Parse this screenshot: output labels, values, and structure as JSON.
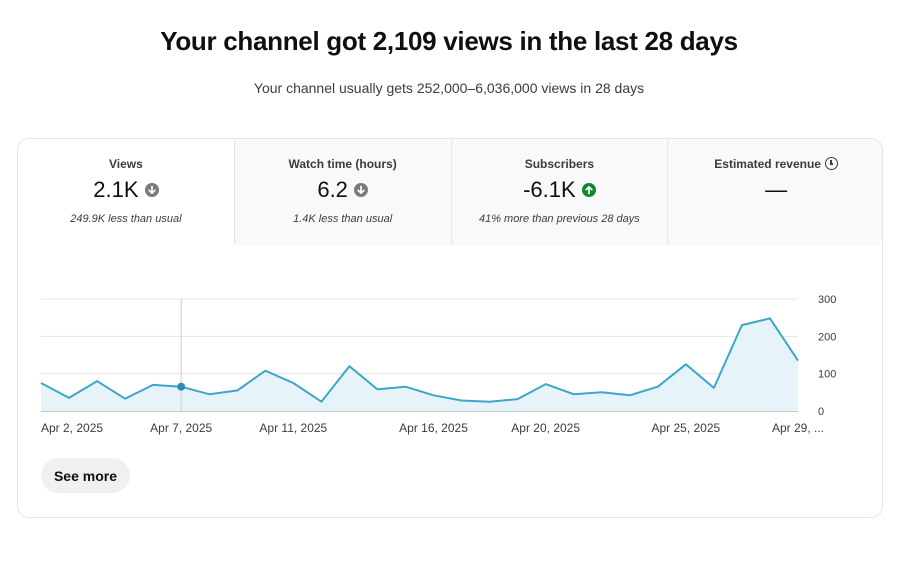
{
  "headline": "Your channel got 2,109 views in the last 28 days",
  "subline": "Your channel usually gets 252,000–6,036,000 views in 28 days",
  "tabs": [
    {
      "label": "Views",
      "value": "2.1K",
      "note": "249.9K less than usual",
      "trend": "down"
    },
    {
      "label": "Watch time (hours)",
      "value": "6.2",
      "note": "1.4K less than usual",
      "trend": "down"
    },
    {
      "label": "Subscribers",
      "value": "-6.1K",
      "note": "41% more than previous 28 days",
      "trend": "up"
    },
    {
      "label": "Estimated revenue",
      "value": "—",
      "note": "",
      "trend": "none"
    }
  ],
  "colors": {
    "line": "#3ea6c9",
    "fill": "#e6f4fa",
    "down": "#7a7a7a",
    "up": "#0a8a2c"
  },
  "icons": {
    "down": "arrow-down-circle-icon",
    "up": "arrow-up-circle-icon",
    "revenue": "clock-icon"
  },
  "see_more_label": "See more",
  "chart_data": {
    "type": "area",
    "ylim": [
      0,
      300
    ],
    "yticks": [
      0,
      100,
      200,
      300
    ],
    "x_tick_labels": [
      {
        "index": 0,
        "label": "Apr 2, 2025"
      },
      {
        "index": 5,
        "label": "Apr 7, 2025"
      },
      {
        "index": 9,
        "label": "Apr 11, 2025"
      },
      {
        "index": 14,
        "label": "Apr 16, 2025"
      },
      {
        "index": 18,
        "label": "Apr 20, 2025"
      },
      {
        "index": 23,
        "label": "Apr 25, 2025"
      },
      {
        "index": 27,
        "label": "Apr 29, ..."
      }
    ],
    "highlight_index": 5,
    "series": [
      {
        "values": [
          75,
          35,
          80,
          33,
          70,
          65,
          45,
          55,
          108,
          75,
          25,
          120,
          58,
          65,
          42,
          28,
          25,
          32,
          72,
          45,
          50,
          42,
          65,
          125,
          62,
          230,
          248,
          135
        ]
      }
    ]
  }
}
